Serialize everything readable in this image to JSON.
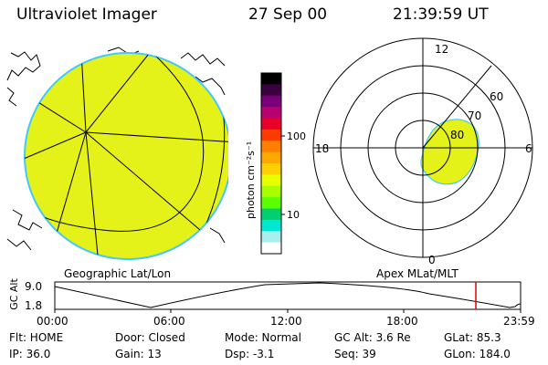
{
  "header": {
    "instrument": "Ultraviolet Imager",
    "date": "27 Sep 00",
    "time": "21:39:59 UT"
  },
  "colorbar": {
    "unit_label": "photon cm⁻²s⁻¹",
    "ticks": [
      "100",
      "10"
    ],
    "colors": [
      "#000000",
      "#3a0040",
      "#7a007a",
      "#b8006e",
      "#e6002a",
      "#ff3a00",
      "#ff7f00",
      "#ffa800",
      "#ffd000",
      "#e8ff00",
      "#a8ff00",
      "#5cff00",
      "#00d070",
      "#00e8d0",
      "#a8f0f0",
      "#ffffff"
    ]
  },
  "geographic_panel": {
    "caption": "Geographic Lat/Lon",
    "fill_color": "#e4f219",
    "rim_color": "#40c8ff"
  },
  "polar_panel": {
    "caption": "Apex MLat/MLT",
    "mlt_labels": [
      "12",
      "18",
      "6",
      "0"
    ],
    "mlat_labels": [
      "60",
      "70",
      "80"
    ],
    "oval_color": "#e4f219"
  },
  "altitude_plot": {
    "ylabel": "GC Alt",
    "yticks": [
      "9.0",
      "1.8"
    ],
    "xticks": [
      "00:00",
      "06:00",
      "12:00",
      "18:00",
      "23:59"
    ],
    "cursor_color": "#e00000"
  },
  "footer": {
    "row1": {
      "flt": "Flt: HOME",
      "door": "Door: Closed",
      "mode": "Mode: Normal",
      "gcalt": "GC Alt: 3.6 Re",
      "glat": "GLat:  85.3"
    },
    "row2": {
      "ip": "IP: 36.0",
      "gain": "Gain: 13",
      "dsp": "Dsp:    -3.1",
      "seq": "Seq: 39",
      "glon": "GLon: 184.0"
    }
  }
}
